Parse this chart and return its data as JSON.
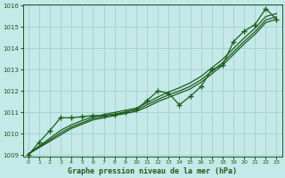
{
  "title": "Graphe pression niveau de la mer (hPa)",
  "bg_color": "#c5e8e8",
  "grid_color": "#9ecece",
  "line_color": "#1a5c1a",
  "ylim": [
    1009,
    1016
  ],
  "xlim": [
    -0.5,
    23.5
  ],
  "yticks": [
    1009,
    1010,
    1011,
    1012,
    1013,
    1014,
    1015,
    1016
  ],
  "xticks": [
    0,
    1,
    2,
    3,
    4,
    5,
    6,
    7,
    8,
    9,
    10,
    11,
    12,
    13,
    14,
    15,
    16,
    17,
    18,
    19,
    20,
    21,
    22,
    23
  ],
  "marker_series": [
    1009.0,
    1009.6,
    1010.15,
    1010.75,
    1010.75,
    1010.8,
    1010.85,
    1010.85,
    1010.9,
    1011.0,
    1011.15,
    1011.55,
    1012.0,
    1011.9,
    1011.35,
    1011.75,
    1012.2,
    1013.0,
    1013.2,
    1014.3,
    1014.8,
    1015.1,
    1015.85,
    1015.35
  ],
  "smooth_lines": [
    [
      1009.05,
      1009.35,
      1009.65,
      1009.95,
      1010.25,
      1010.45,
      1010.65,
      1010.75,
      1010.85,
      1010.95,
      1011.05,
      1011.25,
      1011.5,
      1011.7,
      1011.9,
      1012.1,
      1012.4,
      1012.8,
      1013.2,
      1013.7,
      1014.2,
      1014.65,
      1015.2,
      1015.35
    ],
    [
      1009.05,
      1009.38,
      1009.71,
      1010.04,
      1010.32,
      1010.52,
      1010.72,
      1010.82,
      1010.92,
      1011.02,
      1011.12,
      1011.35,
      1011.6,
      1011.82,
      1012.0,
      1012.22,
      1012.52,
      1012.92,
      1013.32,
      1013.82,
      1014.32,
      1014.77,
      1015.32,
      1015.47
    ],
    [
      1009.05,
      1009.42,
      1009.79,
      1010.16,
      1010.42,
      1010.62,
      1010.8,
      1010.9,
      1011.0,
      1011.1,
      1011.2,
      1011.45,
      1011.72,
      1011.95,
      1012.15,
      1012.38,
      1012.68,
      1013.08,
      1013.48,
      1013.98,
      1014.48,
      1014.93,
      1015.48,
      1015.62
    ]
  ]
}
